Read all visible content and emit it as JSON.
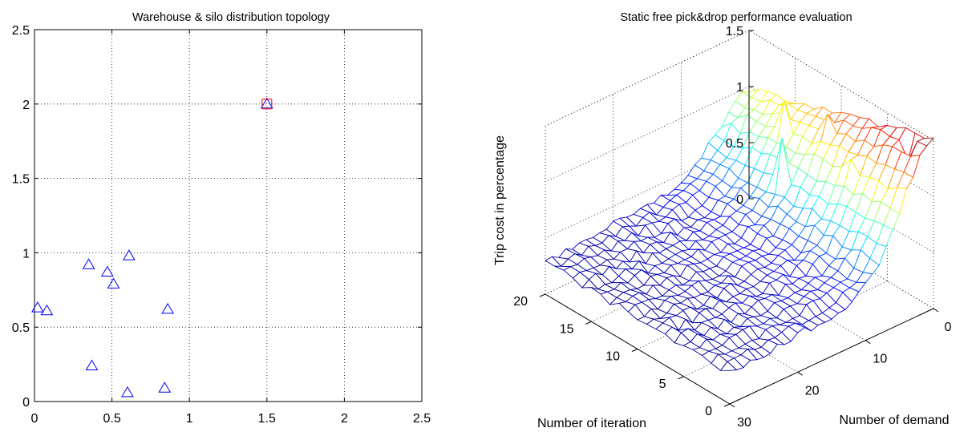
{
  "chart_data": [
    {
      "type": "scatter",
      "title": "Warehouse & silo distribution topology",
      "xlabel": "",
      "ylabel": "",
      "xlim": [
        0,
        2.5
      ],
      "ylim": [
        0,
        2.5
      ],
      "xticks": [
        "0",
        "0.5",
        "1",
        "1.5",
        "2",
        "2.5"
      ],
      "yticks": [
        "0",
        "0.5",
        "1",
        "1.5",
        "2",
        "2.5"
      ],
      "grid": true,
      "series": [
        {
          "marker": "triangle",
          "color": "#0000ff",
          "points": [
            {
              "x": 0.02,
              "y": 0.63
            },
            {
              "x": 0.08,
              "y": 0.61
            },
            {
              "x": 0.35,
              "y": 0.92
            },
            {
              "x": 0.37,
              "y": 0.24
            },
            {
              "x": 0.47,
              "y": 0.87
            },
            {
              "x": 0.51,
              "y": 0.79
            },
            {
              "x": 0.6,
              "y": 0.06
            },
            {
              "x": 0.61,
              "y": 0.98
            },
            {
              "x": 0.84,
              "y": 0.09
            },
            {
              "x": 0.86,
              "y": 0.62
            },
            {
              "x": 1.5,
              "y": 2.0
            }
          ]
        },
        {
          "marker": "square",
          "color": "#ff0000",
          "points": [
            {
              "x": 1.5,
              "y": 2.0
            }
          ]
        }
      ]
    },
    {
      "type": "surface",
      "title": "Static free pick&drop performance evaluation",
      "xlabel": "Number of demand",
      "ylabel": "Number of iteration",
      "zlabel": "Trip cost in percentage",
      "xlim": [
        0,
        30
      ],
      "ylim": [
        0,
        20
      ],
      "zlim": [
        0,
        1.5
      ],
      "xticks": [
        "0",
        "10",
        "20",
        "30"
      ],
      "yticks": [
        "0",
        "5",
        "10",
        "15",
        "20"
      ],
      "zticks": [
        "0",
        "0.5",
        "1",
        "1.5"
      ],
      "grid": true,
      "colormap": "jet",
      "grid_size": {
        "demand": 31,
        "iteration": 21
      },
      "trend": {
        "base": 0.28,
        "demand_rise": 0.16,
        "peak_demand": 0,
        "peak_value": 1.35,
        "peak_width_demand": 6.5,
        "iteration_decay": 0.5,
        "noise": 0.035
      },
      "spikes": [
        {
          "demand": 1,
          "iteration": 2,
          "z": 1.25
        },
        {
          "demand": 2,
          "iteration": 10,
          "z": 1.3
        },
        {
          "demand": 3,
          "iteration": 14,
          "z": 1.25
        },
        {
          "demand": 4,
          "iteration": 6,
          "z": 1.15
        },
        {
          "demand": 6,
          "iteration": 12,
          "z": 1.1
        }
      ]
    }
  ]
}
